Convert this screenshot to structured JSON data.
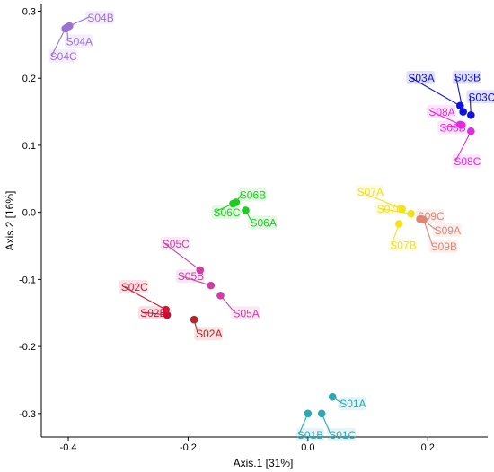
{
  "chart_data": {
    "type": "scatter",
    "title": "",
    "xlabel": "Axis.1 [31%]",
    "ylabel": "Axis.2 [16%]",
    "xlim": [
      -0.445,
      0.3
    ],
    "ylim": [
      -0.335,
      0.31
    ],
    "xticks": [
      -0.4,
      -0.2,
      0.0,
      0.2
    ],
    "xtick_labels": [
      "-0.4",
      "-0.2",
      "0.0",
      "0.2"
    ],
    "yticks": [
      -0.3,
      -0.2,
      -0.1,
      0.0,
      0.1,
      0.2,
      0.3
    ],
    "ytick_labels": [
      "-0.3",
      "-0.2",
      "-0.1",
      "0.0",
      "0.1",
      "0.2",
      "0.3"
    ],
    "grid": false,
    "legend": "none",
    "points": [
      {
        "label": "S01A",
        "x": 0.041,
        "y": -0.275,
        "color": "#2aa9b5"
      },
      {
        "label": "S01B",
        "x": 0.0,
        "y": -0.3,
        "color": "#2aa9b5"
      },
      {
        "label": "S01C",
        "x": 0.023,
        "y": -0.3,
        "color": "#2aa9b5"
      },
      {
        "label": "S02A",
        "x": -0.19,
        "y": -0.16,
        "color": "#b5242a"
      },
      {
        "label": "S02B",
        "x": -0.235,
        "y": -0.153,
        "color": "#c8102e"
      },
      {
        "label": "S02C",
        "x": -0.237,
        "y": -0.145,
        "color": "#d6173a"
      },
      {
        "label": "S03A",
        "x": 0.254,
        "y": 0.159,
        "color": "#1010e0"
      },
      {
        "label": "S03B",
        "x": 0.259,
        "y": 0.15,
        "color": "#1010e0"
      },
      {
        "label": "S03C",
        "x": 0.272,
        "y": 0.145,
        "color": "#1010e0"
      },
      {
        "label": "S04A",
        "x": -0.402,
        "y": 0.276,
        "color": "#9b72d4"
      },
      {
        "label": "S04B",
        "x": -0.398,
        "y": 0.278,
        "color": "#9b72d4"
      },
      {
        "label": "S04C",
        "x": -0.405,
        "y": 0.274,
        "color": "#9b72d4"
      },
      {
        "label": "S05A",
        "x": -0.146,
        "y": -0.124,
        "color": "#cc3fa4"
      },
      {
        "label": "S05B",
        "x": -0.162,
        "y": -0.109,
        "color": "#cc3fa4"
      },
      {
        "label": "S05C",
        "x": -0.18,
        "y": -0.086,
        "color": "#cc3fa4"
      },
      {
        "label": "S06A",
        "x": -0.104,
        "y": 0.003,
        "color": "#1fcc1f"
      },
      {
        "label": "S06B",
        "x": -0.12,
        "y": 0.015,
        "color": "#1fcc1f"
      },
      {
        "label": "S06C",
        "x": -0.125,
        "y": 0.013,
        "color": "#1fcc1f"
      },
      {
        "label": "S07A",
        "x": 0.157,
        "y": 0.005,
        "color": "#f2e21c"
      },
      {
        "label": "S07B",
        "x": 0.152,
        "y": -0.017,
        "color": "#f2e21c"
      },
      {
        "label": "S07C",
        "x": 0.172,
        "y": -0.002,
        "color": "#f2e21c"
      },
      {
        "label": "S08A",
        "x": 0.254,
        "y": 0.131,
        "color": "#e22be0"
      },
      {
        "label": "S08B",
        "x": 0.257,
        "y": 0.13,
        "color": "#e22be0"
      },
      {
        "label": "S08C",
        "x": 0.272,
        "y": 0.121,
        "color": "#e22be0"
      },
      {
        "label": "S09A",
        "x": 0.19,
        "y": -0.01,
        "color": "#dd8575"
      },
      {
        "label": "S09B",
        "x": 0.193,
        "y": -0.011,
        "color": "#dd8575"
      },
      {
        "label": "S09C",
        "x": 0.187,
        "y": -0.01,
        "color": "#dd8575"
      }
    ]
  }
}
